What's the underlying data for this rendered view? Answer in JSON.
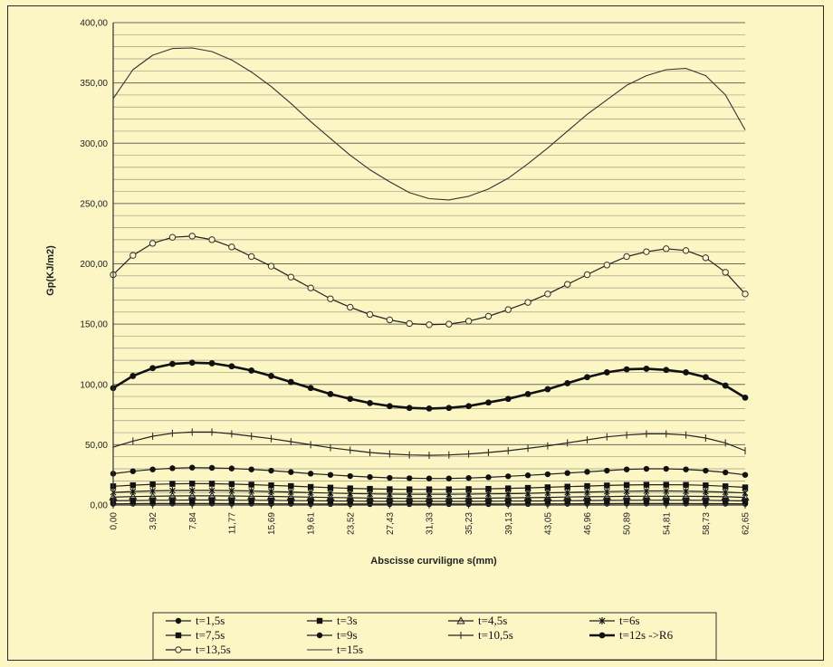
{
  "chart_data": {
    "type": "line",
    "xlabel": "Abscisse curviligne s(mm)",
    "ylabel": "Gp(KJ/m2)",
    "ylim": [
      0,
      400
    ],
    "ytick_step": 50,
    "ytick_labels": [
      "0,00",
      "50,00",
      "100,00",
      "150,00",
      "200,00",
      "250,00",
      "300,00",
      "350,00",
      "400,00"
    ],
    "x_tick_labels": [
      "0,00",
      "3,92",
      "7,84",
      "11,77",
      "15,69",
      "19,61",
      "23,52",
      "27,43",
      "31,33",
      "35,23",
      "39,13",
      "43,05",
      "46,96",
      "50,89",
      "54,81",
      "58,73",
      "62,65"
    ],
    "x_point_count": 33,
    "grid": true,
    "legend_position": "bottom",
    "series": [
      {
        "name": "t=1,5s",
        "marker": "circle-filled",
        "shape": [
          0.5,
          0.4,
          0.3,
          0.5,
          0.3,
          0.8,
          0.1,
          0.5
        ],
        "values": [
          1.0,
          1.1,
          1.2,
          1.2,
          1.2,
          1.2,
          1.1,
          1.1,
          1.0,
          1.0,
          0.9,
          0.9,
          0.8,
          0.8,
          0.8,
          0.8,
          0.8,
          0.8,
          0.8,
          0.8,
          0.9,
          0.9,
          1.0,
          1.0,
          1.1,
          1.1,
          1.2,
          1.2,
          1.2,
          1.2,
          1.1,
          1.1,
          1.0
        ]
      },
      {
        "name": "t=3s",
        "marker": "square-filled",
        "values": [
          3.5,
          3.7,
          3.9,
          4.0,
          4.1,
          4.1,
          4.0,
          3.9,
          3.8,
          3.6,
          3.5,
          3.4,
          3.2,
          3.1,
          3.0,
          3.0,
          3.0,
          3.0,
          3.0,
          3.1,
          3.2,
          3.3,
          3.4,
          3.5,
          3.7,
          3.8,
          3.9,
          4.0,
          4.0,
          4.0,
          3.9,
          3.7,
          3.4
        ]
      },
      {
        "name": "t=4,5s",
        "marker": "triangle-open",
        "values": [
          6.5,
          7.0,
          7.3,
          7.5,
          7.6,
          7.6,
          7.5,
          7.3,
          7.1,
          6.8,
          6.5,
          6.2,
          6.0,
          5.8,
          5.6,
          5.5,
          5.5,
          5.5,
          5.6,
          5.7,
          5.9,
          6.1,
          6.3,
          6.6,
          6.8,
          7.0,
          7.2,
          7.3,
          7.3,
          7.3,
          7.1,
          6.8,
          6.3
        ]
      },
      {
        "name": "t=6s",
        "marker": "x-bar",
        "values": [
          10.5,
          11.2,
          11.7,
          12.0,
          12.1,
          12.1,
          11.9,
          11.6,
          11.2,
          10.8,
          10.3,
          9.9,
          9.5,
          9.2,
          9.0,
          8.9,
          8.9,
          8.9,
          9.0,
          9.2,
          9.4,
          9.7,
          10.1,
          10.4,
          10.8,
          11.1,
          11.4,
          11.6,
          11.6,
          11.5,
          11.2,
          10.7,
          10.0
        ]
      },
      {
        "name": "t=7,5s",
        "marker": "square-filled",
        "values": [
          15.5,
          16.4,
          17.1,
          17.5,
          17.7,
          17.6,
          17.3,
          16.9,
          16.3,
          15.7,
          15.0,
          14.4,
          13.8,
          13.4,
          13.1,
          13.0,
          13.0,
          13.0,
          13.2,
          13.4,
          13.8,
          14.2,
          14.7,
          15.2,
          15.7,
          16.2,
          16.6,
          16.8,
          16.8,
          16.7,
          16.3,
          15.5,
          14.6
        ]
      },
      {
        "name": "t=9s",
        "marker": "circle-filled",
        "values": [
          26.0,
          28.0,
          29.5,
          30.5,
          31.0,
          30.8,
          30.3,
          29.5,
          28.5,
          27.3,
          26.0,
          25.0,
          24.0,
          23.2,
          22.5,
          22.2,
          22.0,
          22.0,
          22.4,
          23.0,
          23.8,
          24.6,
          25.5,
          26.5,
          27.5,
          28.5,
          29.5,
          30.0,
          30.0,
          29.5,
          28.5,
          27.0,
          25.0
        ]
      },
      {
        "name": "t=10,5s",
        "marker": "plus",
        "values": [
          48.0,
          53.0,
          57.0,
          59.5,
          60.5,
          60.5,
          59.0,
          57.0,
          55.0,
          52.5,
          50.0,
          47.5,
          45.5,
          43.5,
          42.3,
          41.5,
          41.2,
          41.5,
          42.3,
          43.5,
          45.0,
          47.0,
          49.0,
          51.5,
          54.0,
          56.5,
          58.0,
          59.0,
          59.0,
          58.0,
          55.5,
          51.5,
          45.0
        ]
      },
      {
        "name": "t=12s ->R6",
        "marker": "circle-bold",
        "values": [
          97.0,
          107.0,
          113.5,
          117.0,
          118.0,
          117.5,
          115.0,
          111.5,
          107.0,
          102.0,
          97.0,
          92.0,
          88.0,
          84.5,
          82.0,
          80.5,
          80.0,
          80.5,
          82.0,
          85.0,
          88.0,
          92.0,
          96.0,
          101.0,
          106.0,
          110.0,
          112.5,
          113.0,
          112.0,
          110.0,
          106.0,
          99.0,
          89.0
        ]
      },
      {
        "name": "t=13,5s",
        "marker": "circle-open",
        "values": [
          191.0,
          207.0,
          217.0,
          222.0,
          223.0,
          220.0,
          214.0,
          206.0,
          198.0,
          189.0,
          180.0,
          171.0,
          164.0,
          158.0,
          153.5,
          150.5,
          149.5,
          150.0,
          152.5,
          156.5,
          162.0,
          168.0,
          175.0,
          183.0,
          191.0,
          199.0,
          206.0,
          210.0,
          212.5,
          211.0,
          205.0,
          193.0,
          175.0
        ]
      },
      {
        "name": "t=15s",
        "marker": "none",
        "values": [
          337.0,
          361.0,
          373.0,
          378.5,
          379.0,
          376.0,
          369.0,
          359.0,
          347.0,
          333.0,
          318.0,
          304.0,
          290.0,
          278.0,
          268.0,
          259.0,
          254.0,
          253.0,
          256.0,
          262.0,
          271.0,
          283.0,
          296.0,
          310.0,
          324.0,
          336.0,
          348.0,
          356.0,
          361.0,
          362.0,
          356.0,
          340.0,
          311.0
        ]
      }
    ]
  }
}
